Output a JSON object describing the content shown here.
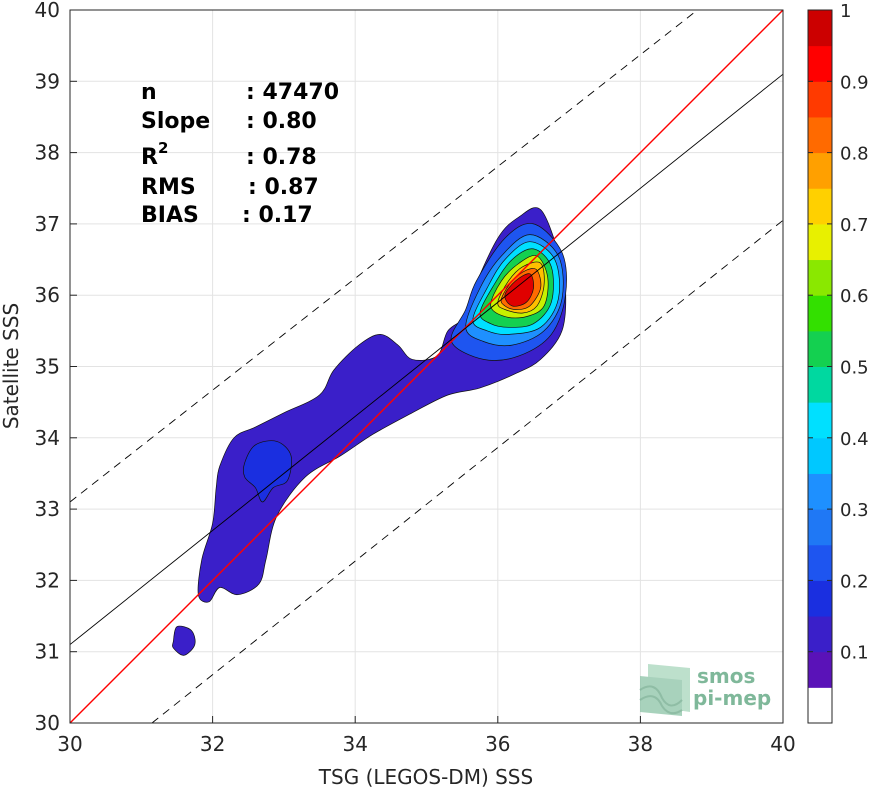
{
  "chart_data": {
    "type": "scatter",
    "subtype": "density-contour",
    "xlabel": "TSG (LEGOS-DM) SSS",
    "ylabel": "Satellite SSS",
    "xlim": [
      30,
      40
    ],
    "ylim": [
      30,
      40
    ],
    "xticks": [
      "30",
      "32",
      "34",
      "36",
      "38",
      "40"
    ],
    "yticks": [
      "30",
      "31",
      "32",
      "33",
      "34",
      "35",
      "36",
      "37",
      "38",
      "39",
      "40"
    ],
    "grid": true,
    "stats": [
      {
        "label": "n",
        "value": ": 47470"
      },
      {
        "label": "Slope",
        "value": ": 0.80"
      },
      {
        "label": "R",
        "sup": "2",
        "value": ": 0.78"
      },
      {
        "label": "RMS",
        "value": ": 0.87"
      },
      {
        "label": "BIAS",
        "value": ": 0.17"
      }
    ],
    "reference_lines": [
      {
        "kind": "identity",
        "color": "#ff0000",
        "style": "solid",
        "x": [
          30,
          40
        ],
        "y": [
          30,
          40
        ]
      },
      {
        "kind": "regression",
        "color": "#000000",
        "style": "solid",
        "x": [
          30,
          40
        ],
        "y": [
          31.1,
          39.1
        ]
      },
      {
        "kind": "upper-bound",
        "color": "#000000",
        "style": "dashed",
        "x": [
          30,
          38.8
        ],
        "y": [
          33.1,
          40
        ]
      },
      {
        "kind": "lower-bound",
        "color": "#000000",
        "style": "dashed",
        "x": [
          31.15,
          40
        ],
        "y": [
          30,
          37.05
        ]
      }
    ],
    "density_levels": [
      {
        "level": 0.1,
        "color": "#3a1fc9",
        "region": [
          [
            31.8,
            31.8
          ],
          [
            31.85,
            32.3
          ],
          [
            32.0,
            32.8
          ],
          [
            32.05,
            33.3
          ],
          [
            32.1,
            33.6
          ],
          [
            32.3,
            34.0
          ],
          [
            32.6,
            34.15
          ],
          [
            33.0,
            34.35
          ],
          [
            33.5,
            34.6
          ],
          [
            33.7,
            34.95
          ],
          [
            34.05,
            35.3
          ],
          [
            34.35,
            35.45
          ],
          [
            34.6,
            35.3
          ],
          [
            34.8,
            35.1
          ],
          [
            35.15,
            35.15
          ],
          [
            35.3,
            35.5
          ],
          [
            35.55,
            35.7
          ],
          [
            35.65,
            36.05
          ],
          [
            36.0,
            36.8
          ],
          [
            36.3,
            37.1
          ],
          [
            36.6,
            37.2
          ],
          [
            36.85,
            36.6
          ],
          [
            36.95,
            36.1
          ],
          [
            36.9,
            35.5
          ],
          [
            36.6,
            35.1
          ],
          [
            36.25,
            34.9
          ],
          [
            35.75,
            34.7
          ],
          [
            35.3,
            34.6
          ],
          [
            34.8,
            34.35
          ],
          [
            34.25,
            34.05
          ],
          [
            33.8,
            33.75
          ],
          [
            33.3,
            33.45
          ],
          [
            32.9,
            32.9
          ],
          [
            32.75,
            32.3
          ],
          [
            32.65,
            31.95
          ],
          [
            32.35,
            31.8
          ],
          [
            32.1,
            31.9
          ],
          [
            31.95,
            31.7
          ]
        ]
      },
      {
        "level": 0.15,
        "color": "#1a2fe0",
        "region": [
          [
            32.45,
            33.65
          ],
          [
            32.6,
            33.9
          ],
          [
            32.9,
            33.95
          ],
          [
            33.1,
            33.75
          ],
          [
            33.05,
            33.4
          ],
          [
            32.85,
            33.3
          ],
          [
            32.7,
            33.1
          ],
          [
            32.6,
            33.3
          ],
          [
            32.45,
            33.45
          ]
        ]
      },
      {
        "level": 0.2,
        "color": "#1e55f0",
        "region": [
          [
            35.35,
            35.35
          ],
          [
            35.55,
            35.8
          ],
          [
            35.7,
            36.2
          ],
          [
            36.1,
            36.8
          ],
          [
            36.5,
            37.0
          ],
          [
            36.9,
            36.6
          ],
          [
            36.95,
            36.0
          ],
          [
            36.75,
            35.45
          ],
          [
            36.3,
            35.15
          ],
          [
            35.8,
            35.1
          ]
        ]
      },
      {
        "level": 0.3,
        "color": "#1e90ff",
        "region": [
          [
            35.55,
            35.55
          ],
          [
            35.75,
            36.1
          ],
          [
            36.05,
            36.55
          ],
          [
            36.45,
            36.85
          ],
          [
            36.85,
            36.55
          ],
          [
            36.9,
            35.95
          ],
          [
            36.65,
            35.5
          ],
          [
            36.2,
            35.3
          ],
          [
            35.8,
            35.35
          ]
        ]
      },
      {
        "level": 0.4,
        "color": "#00e0ff",
        "region": [
          [
            35.65,
            35.65
          ],
          [
            35.85,
            36.1
          ],
          [
            36.1,
            36.5
          ],
          [
            36.45,
            36.75
          ],
          [
            36.8,
            36.5
          ],
          [
            36.85,
            35.95
          ],
          [
            36.6,
            35.55
          ],
          [
            36.15,
            35.45
          ],
          [
            35.85,
            35.5
          ]
        ]
      },
      {
        "level": 0.5,
        "color": "#14d050",
        "region": [
          [
            35.75,
            35.75
          ],
          [
            35.95,
            36.15
          ],
          [
            36.2,
            36.5
          ],
          [
            36.5,
            36.65
          ],
          [
            36.75,
            36.4
          ],
          [
            36.75,
            35.9
          ],
          [
            36.5,
            35.6
          ],
          [
            36.15,
            35.55
          ],
          [
            35.9,
            35.6
          ]
        ]
      },
      {
        "level": 0.6,
        "color": "#c8f000",
        "region": [
          [
            35.9,
            35.85
          ],
          [
            36.05,
            36.2
          ],
          [
            36.3,
            36.45
          ],
          [
            36.55,
            36.55
          ],
          [
            36.7,
            36.25
          ],
          [
            36.65,
            35.85
          ],
          [
            36.4,
            35.7
          ],
          [
            36.1,
            35.7
          ]
        ]
      },
      {
        "level": 0.7,
        "color": "#ffc000",
        "region": [
          [
            36.0,
            35.9
          ],
          [
            36.15,
            36.2
          ],
          [
            36.35,
            36.4
          ],
          [
            36.6,
            36.45
          ],
          [
            36.65,
            36.15
          ],
          [
            36.55,
            35.85
          ],
          [
            36.35,
            35.75
          ],
          [
            36.1,
            35.8
          ]
        ]
      },
      {
        "level": 0.8,
        "color": "#ff6a00",
        "region": [
          [
            36.05,
            35.95
          ],
          [
            36.2,
            36.2
          ],
          [
            36.4,
            36.35
          ],
          [
            36.55,
            36.35
          ],
          [
            36.6,
            36.1
          ],
          [
            36.45,
            35.85
          ],
          [
            36.25,
            35.8
          ],
          [
            36.1,
            35.85
          ]
        ]
      },
      {
        "level": 0.9,
        "color": "#e00000",
        "region": [
          [
            36.1,
            36.0
          ],
          [
            36.25,
            36.2
          ],
          [
            36.45,
            36.3
          ],
          [
            36.5,
            36.1
          ],
          [
            36.4,
            35.9
          ],
          [
            36.2,
            35.85
          ]
        ]
      },
      {
        "level": 0.1,
        "color": "#3a1fc9",
        "region": [
          [
            31.45,
            31.15
          ],
          [
            31.5,
            31.35
          ],
          [
            31.7,
            31.3
          ],
          [
            31.75,
            31.1
          ],
          [
            31.6,
            30.95
          ],
          [
            31.45,
            31.05
          ]
        ]
      }
    ],
    "colorbar": {
      "ticks": [
        "0.1",
        "0.2",
        "0.3",
        "0.4",
        "0.5",
        "0.6",
        "0.7",
        "0.8",
        "0.9",
        "1"
      ],
      "range": [
        0,
        1
      ],
      "bands": [
        {
          "from": 0.0,
          "to": 0.05,
          "color": "#ffffff"
        },
        {
          "from": 0.05,
          "to": 0.1,
          "color": "#5a12b8"
        },
        {
          "from": 0.1,
          "to": 0.15,
          "color": "#3a1fc9"
        },
        {
          "from": 0.15,
          "to": 0.2,
          "color": "#1a2fe0"
        },
        {
          "from": 0.2,
          "to": 0.25,
          "color": "#1e55f0"
        },
        {
          "from": 0.25,
          "to": 0.3,
          "color": "#1f78f5"
        },
        {
          "from": 0.3,
          "to": 0.35,
          "color": "#1e90ff"
        },
        {
          "from": 0.35,
          "to": 0.4,
          "color": "#00c8ff"
        },
        {
          "from": 0.4,
          "to": 0.45,
          "color": "#00e0ff"
        },
        {
          "from": 0.45,
          "to": 0.5,
          "color": "#00d8a0"
        },
        {
          "from": 0.5,
          "to": 0.55,
          "color": "#14d050"
        },
        {
          "from": 0.55,
          "to": 0.6,
          "color": "#33e000"
        },
        {
          "from": 0.6,
          "to": 0.65,
          "color": "#8ae800"
        },
        {
          "from": 0.65,
          "to": 0.7,
          "color": "#e8f000"
        },
        {
          "from": 0.7,
          "to": 0.75,
          "color": "#ffd000"
        },
        {
          "from": 0.75,
          "to": 0.8,
          "color": "#ffa000"
        },
        {
          "from": 0.8,
          "to": 0.85,
          "color": "#ff6a00"
        },
        {
          "from": 0.85,
          "to": 0.9,
          "color": "#ff3a00"
        },
        {
          "from": 0.9,
          "to": 0.95,
          "color": "#ff0000"
        },
        {
          "from": 0.95,
          "to": 1.0,
          "color": "#cc0000"
        }
      ]
    }
  },
  "logo": {
    "line1": "smos",
    "line2": "pi-mep",
    "color": "#7fb89a"
  }
}
